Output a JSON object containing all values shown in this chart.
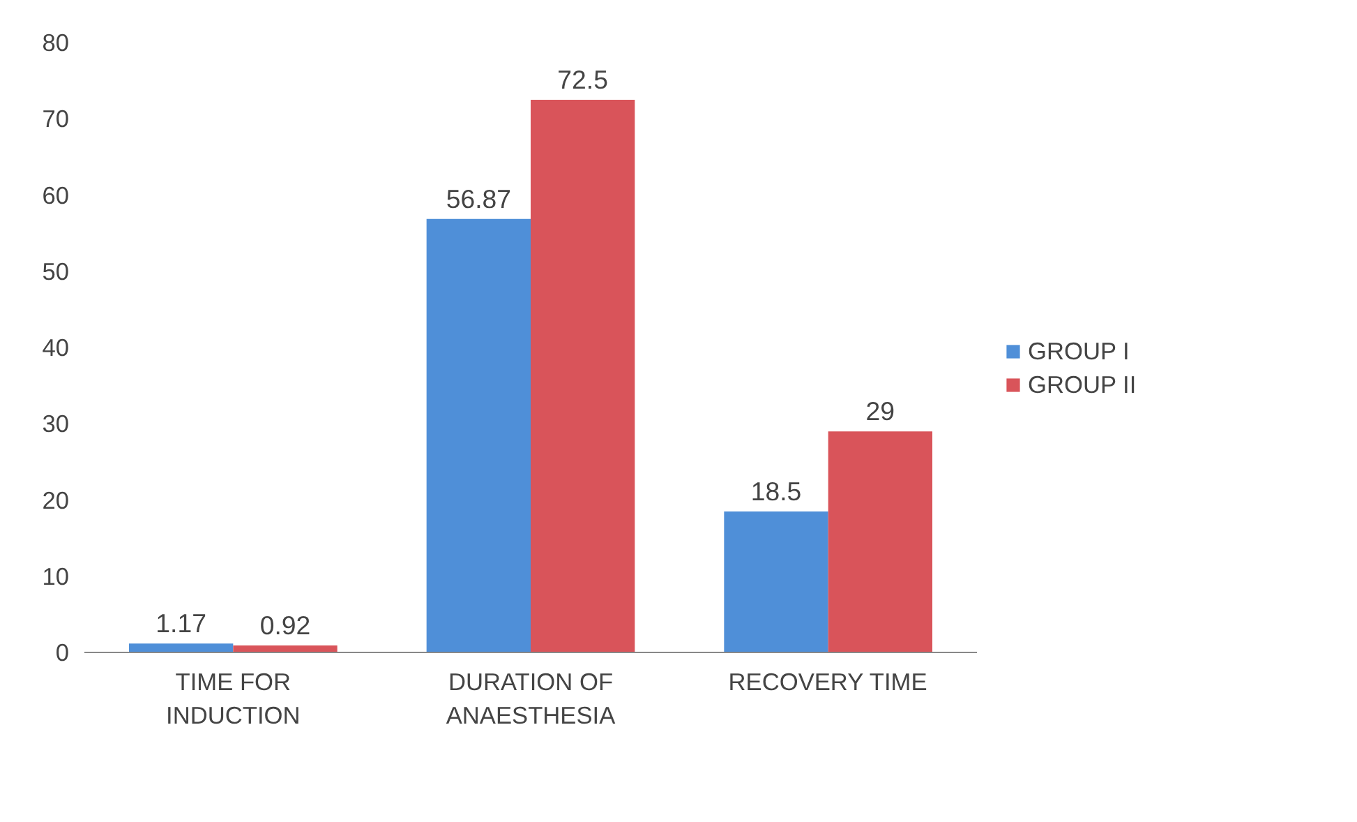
{
  "chart_data": {
    "type": "bar",
    "categories": [
      "TIME FOR INDUCTION",
      "DURATION OF ANAESTHESIA",
      "RECOVERY TIME"
    ],
    "series": [
      {
        "name": "GROUP I",
        "color": "#4f8fd8",
        "values": [
          1.17,
          56.87,
          18.5
        ]
      },
      {
        "name": "GROUP II",
        "color": "#d9545a",
        "values": [
          0.92,
          72.5,
          29
        ]
      }
    ],
    "ylim": [
      0,
      80
    ],
    "yticks": [
      0,
      10,
      20,
      30,
      40,
      50,
      60,
      70,
      80
    ],
    "grid": false,
    "legend": "right",
    "data_labels": true
  }
}
